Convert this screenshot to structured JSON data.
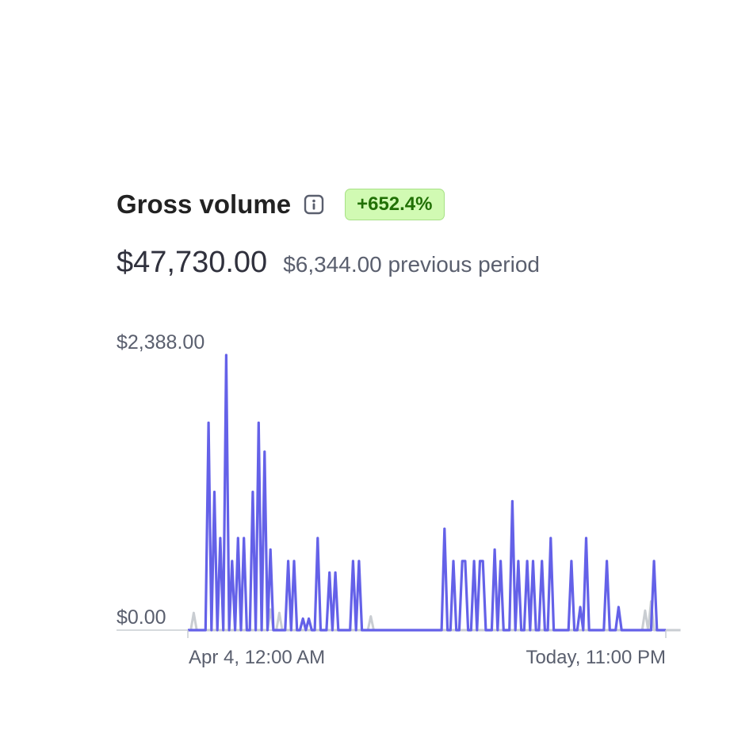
{
  "header": {
    "title": "Gross volume",
    "info_icon": "info-icon",
    "change_badge": "+652.4%",
    "current_value": "$47,730.00",
    "previous_value": "$6,344.00",
    "previous_label": "previous period"
  },
  "colors": {
    "current_series": "#6461e8",
    "previous_series": "#c9cdd2",
    "badge_bg": "#d1fab3",
    "badge_text": "#217005"
  },
  "chart_data": {
    "type": "line",
    "title": "Gross volume",
    "xlabel": "",
    "ylabel": "",
    "ylim": [
      0,
      2388
    ],
    "y_tick_labels": [
      "$2,388.00",
      "$0.00"
    ],
    "x_tick_labels": [
      "Apr 4, 12:00 AM",
      "Today, 11:00 PM"
    ],
    "grid": false,
    "series": [
      {
        "name": "current",
        "values": [
          0,
          0,
          0,
          0,
          0,
          0,
          0,
          1800,
          0,
          1200,
          0,
          800,
          0,
          2388,
          0,
          600,
          0,
          800,
          0,
          800,
          0,
          0,
          1200,
          0,
          1800,
          0,
          1550,
          0,
          700,
          0,
          0,
          0,
          0,
          0,
          600,
          0,
          600,
          0,
          0,
          100,
          0,
          100,
          0,
          0,
          800,
          0,
          0,
          0,
          500,
          0,
          500,
          0,
          0,
          0,
          0,
          0,
          600,
          0,
          600,
          0,
          0,
          0,
          0,
          0,
          0,
          0,
          0,
          0,
          0,
          0,
          0,
          0,
          0,
          0,
          0,
          0,
          0,
          0,
          0,
          0,
          0,
          0,
          0,
          0,
          0,
          0,
          0,
          880,
          0,
          0,
          600,
          0,
          0,
          600,
          600,
          0,
          0,
          600,
          0,
          600,
          600,
          0,
          0,
          0,
          700,
          0,
          600,
          0,
          0,
          0,
          1120,
          0,
          600,
          0,
          0,
          600,
          0,
          600,
          0,
          0,
          600,
          0,
          0,
          800,
          0,
          0,
          0,
          0,
          0,
          0,
          600,
          0,
          0,
          200,
          0,
          800,
          0,
          0,
          0,
          0,
          0,
          0,
          600,
          0,
          0,
          0,
          200,
          0,
          0,
          0,
          0,
          0,
          0,
          0,
          0,
          0,
          0,
          0,
          600,
          0,
          0,
          0,
          0
        ],
        "previous_values": [
          0,
          0,
          150,
          0,
          0,
          0,
          0,
          0,
          0,
          0,
          0,
          0,
          0,
          0,
          0,
          0,
          0,
          0,
          0,
          0,
          0,
          0,
          0,
          0,
          0,
          0,
          0,
          0,
          180,
          0,
          0,
          150,
          0,
          0,
          0,
          0,
          0,
          0,
          0,
          0,
          0,
          0,
          0,
          0,
          0,
          0,
          0,
          0,
          0,
          0,
          0,
          0,
          0,
          0,
          0,
          0,
          0,
          0,
          0,
          0,
          0,
          0,
          120,
          0,
          0,
          0,
          0,
          0,
          0,
          0,
          0,
          0,
          0,
          0,
          0,
          0,
          0,
          0,
          0,
          0,
          0,
          0,
          0,
          0,
          0,
          0,
          0,
          0,
          0,
          0,
          0,
          0,
          0,
          0,
          0,
          0,
          0,
          0,
          0,
          0,
          0,
          0,
          0,
          0,
          0,
          0,
          0,
          0,
          0,
          0,
          0,
          0,
          0,
          0,
          0,
          0,
          0,
          0,
          0,
          0,
          0,
          0,
          0,
          0,
          0,
          0,
          0,
          0,
          0,
          0,
          0,
          0,
          0,
          0,
          0,
          0,
          0,
          0,
          0,
          0,
          0,
          0,
          0,
          0,
          0,
          0,
          0,
          0,
          0,
          0,
          0,
          0,
          0,
          0,
          0,
          170,
          0,
          250,
          0,
          0,
          0,
          0,
          0,
          0,
          0,
          0,
          0,
          0
        ]
      }
    ]
  }
}
